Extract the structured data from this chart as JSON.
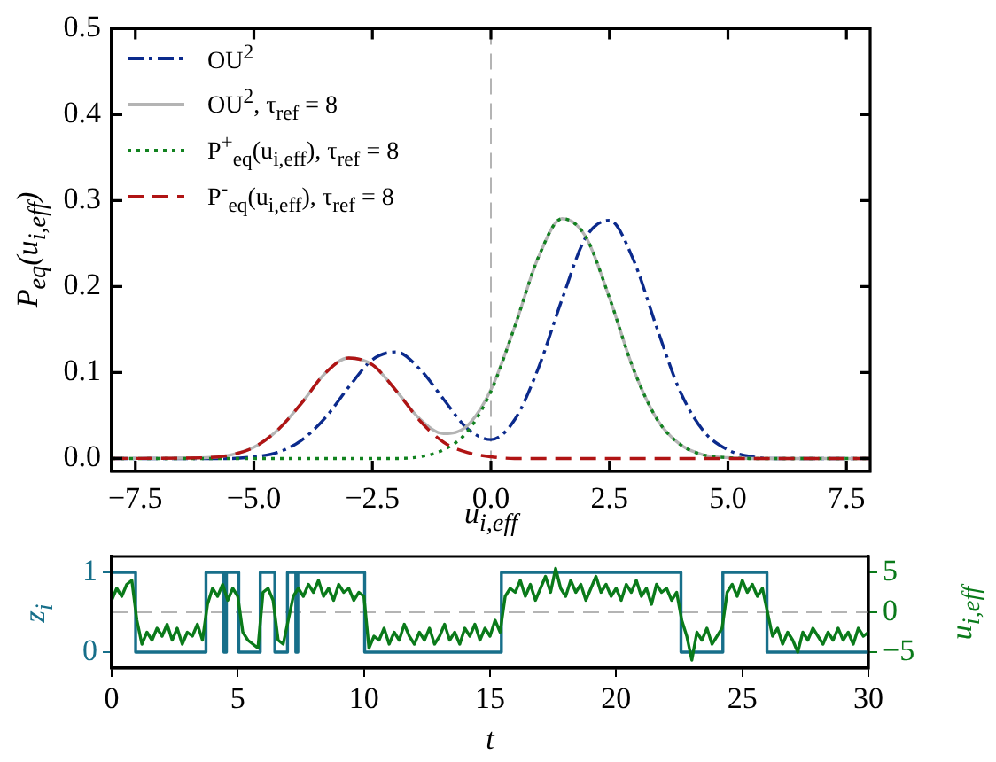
{
  "chart_data": [
    {
      "type": "line",
      "xlabel": "u$_{i,eff}$",
      "ylabel": "P$_{eq}$(u$_{i,eff}$)",
      "x": [
        -8,
        -6,
        -5.5,
        -5,
        -4.5,
        -4,
        -3.5,
        -3,
        -2.5,
        -2,
        -1.5,
        -1,
        -0.5,
        0,
        0.5,
        1,
        1.5,
        2,
        2.5,
        3,
        3.5,
        4,
        4.5,
        5,
        5.5,
        6,
        8
      ],
      "series": [
        {
          "name": "OU$^{2}$",
          "color": "#0b2a8c",
          "line_style": "dashdot",
          "values": [
            0,
            0,
            0,
            0.002,
            0.007,
            0.021,
            0.047,
            0.083,
            0.115,
            0.124,
            0.104,
            0.069,
            0.035,
            0.022,
            0.045,
            0.105,
            0.185,
            0.257,
            0.277,
            0.232,
            0.152,
            0.077,
            0.031,
            0.01,
            0.002,
            0,
            0
          ]
        },
        {
          "name": "OU$^{2}$, τ$_{ref}$ = 8",
          "color": "#b4b4b4",
          "line_style": "solid",
          "values": [
            0,
            0.001,
            0.004,
            0.013,
            0.033,
            0.064,
            0.099,
            0.117,
            0.109,
            0.079,
            0.046,
            0.029,
            0.038,
            0.08,
            0.153,
            0.234,
            0.279,
            0.258,
            0.187,
            0.105,
            0.046,
            0.016,
            0.004,
            0.001,
            0,
            0,
            0
          ]
        },
        {
          "name": "P$^{+}$$_{eq}$(u$_{i,eff}$), τ$_{ref}$ = 8",
          "color": "#11821f",
          "line_style": "dotted",
          "values": [
            0,
            0,
            0,
            0,
            0,
            0,
            0,
            0,
            0,
            0,
            0.002,
            0.01,
            0.031,
            0.078,
            0.153,
            0.234,
            0.279,
            0.258,
            0.187,
            0.105,
            0.046,
            0.016,
            0.004,
            0.001,
            0,
            0,
            0
          ]
        },
        {
          "name": "P$^{-}$$_{eq}$(u$_{i,eff}$), τ$_{ref}$ = 8",
          "color": "#b01414",
          "line_style": "dashed",
          "values": [
            0,
            0.001,
            0.004,
            0.013,
            0.033,
            0.064,
            0.099,
            0.117,
            0.109,
            0.079,
            0.044,
            0.019,
            0.007,
            0.002,
            0,
            0,
            0,
            0,
            0,
            0,
            0,
            0,
            0,
            0,
            0,
            0,
            0
          ]
        }
      ],
      "xlim": [
        -8,
        8
      ],
      "xticks": [
        {
          "value": -7.5,
          "label": "−7.5"
        },
        {
          "value": -5,
          "label": "−5.0"
        },
        {
          "value": -2.5,
          "label": "−2.5"
        },
        {
          "value": 0,
          "label": "0.0"
        },
        {
          "value": 2.5,
          "label": "2.5"
        },
        {
          "value": 5,
          "label": "5.0"
        },
        {
          "value": 7.5,
          "label": "7.5"
        }
      ],
      "ylim": [
        -0.015,
        0.5
      ],
      "yticks": [
        {
          "value": 0,
          "label": "0.0"
        },
        {
          "value": 0.1,
          "label": "0.1"
        },
        {
          "value": 0.2,
          "label": "0.2"
        },
        {
          "value": 0.3,
          "label": "0.3"
        },
        {
          "value": 0.4,
          "label": "0.4"
        },
        {
          "value": 0.5,
          "label": "0.5"
        }
      ],
      "ref_lines": [
        {
          "axis": "x",
          "value": 0,
          "color": "#b4b4b4",
          "line_style": "dashed"
        }
      ],
      "legend": "top left",
      "grid": false
    },
    {
      "type": "line",
      "xlabel": "t",
      "ylabel": "z$_{i}$",
      "y2label": "u$_{i,eff}$",
      "series": [
        {
          "type": "step",
          "color": "#176f8a",
          "x": [
            0,
            0.95,
            3.74,
            4.45,
            4.55,
            5.04,
            5.89,
            6.47,
            6.97,
            7.3,
            7.38,
            10.03,
            15.45,
            22.57,
            24.23,
            25.98,
            30
          ],
          "values": [
            1,
            0,
            1,
            0,
            1,
            0,
            1,
            0,
            1,
            0,
            1,
            0,
            1,
            0,
            1,
            0,
            0
          ]
        },
        {
          "axis": "y2",
          "color": "#0a7a1a",
          "x": [
            0,
            0.2,
            0.4,
            0.6,
            0.8,
            1,
            1.2,
            1.4,
            1.6,
            1.8,
            2,
            2.2,
            2.4,
            2.6,
            2.8,
            3,
            3.2,
            3.4,
            3.6,
            3.8,
            4,
            4.2,
            4.4,
            4.6,
            4.8,
            5,
            5.2,
            5.4,
            5.6,
            5.8,
            6,
            6.2,
            6.4,
            6.6,
            6.8,
            7,
            7.2,
            7.4,
            7.6,
            7.8,
            8,
            8.2,
            8.4,
            8.6,
            8.8,
            9,
            9.2,
            9.4,
            9.6,
            9.8,
            10,
            10.2,
            10.4,
            10.6,
            10.8,
            11,
            11.2,
            11.4,
            11.6,
            11.8,
            12,
            12.2,
            12.4,
            12.6,
            12.8,
            13,
            13.2,
            13.4,
            13.6,
            13.8,
            14,
            14.2,
            14.4,
            14.6,
            14.8,
            15,
            15.2,
            15.4,
            15.6,
            15.8,
            16,
            16.2,
            16.4,
            16.6,
            16.8,
            17,
            17.2,
            17.4,
            17.6,
            17.8,
            18,
            18.2,
            18.4,
            18.6,
            18.8,
            19,
            19.2,
            19.4,
            19.6,
            19.8,
            20,
            20.2,
            20.4,
            20.6,
            20.8,
            21,
            21.2,
            21.4,
            21.6,
            21.8,
            22,
            22.2,
            22.4,
            22.6,
            22.8,
            23,
            23.2,
            23.4,
            23.6,
            23.8,
            24,
            24.2,
            24.4,
            24.6,
            24.8,
            25,
            25.2,
            25.4,
            25.6,
            25.8,
            26,
            26.2,
            26.4,
            26.6,
            26.8,
            27,
            27.2,
            27.4,
            27.6,
            27.8,
            28,
            28.2,
            28.4,
            28.6,
            28.8,
            29,
            29.2,
            29.4,
            29.6,
            29.8,
            30
          ],
          "values": [
            1.5,
            3,
            2,
            3.5,
            4,
            -1,
            -4,
            -2.5,
            -3.5,
            -2,
            -3,
            -1.5,
            -3.5,
            -2,
            -4,
            -2.5,
            -3,
            -1.5,
            -3.5,
            1,
            3,
            2,
            3.5,
            1.5,
            3,
            2,
            -2.5,
            -3.5,
            -4,
            -4.5,
            2.5,
            3,
            1.5,
            -3.5,
            -4,
            -1,
            2,
            3,
            2,
            3.5,
            2.5,
            4,
            2,
            3,
            1.5,
            3.5,
            2.5,
            3,
            1.5,
            2.5,
            2,
            -4.5,
            -3,
            -3.5,
            -2,
            -4,
            -2.5,
            -3.5,
            -1.5,
            -3,
            -4,
            -2.5,
            -3.5,
            -2,
            -4,
            -3,
            -1.5,
            -3.5,
            -2.5,
            -4,
            -2,
            -3,
            -1.5,
            -3.5,
            -2,
            -3,
            -1,
            -2.5,
            2,
            3,
            2.5,
            4,
            2,
            3.5,
            1.5,
            3,
            4.5,
            2.5,
            5.5,
            3,
            2,
            4,
            2.5,
            3.5,
            1.5,
            3,
            4.5,
            2.5,
            3.5,
            2,
            3,
            1.5,
            3.5,
            2.5,
            4,
            2,
            3,
            1,
            3.5,
            2.5,
            3,
            1.5,
            2.5,
            -1,
            -3,
            -6,
            -2.5,
            -3.5,
            -2,
            -4,
            -3,
            -2,
            2.5,
            3.5,
            2,
            4,
            2.5,
            3.5,
            2,
            3,
            0,
            -3,
            -2,
            -4,
            -2.5,
            -3.5,
            -5,
            -2.5,
            -3.5,
            -2,
            -3,
            -4,
            -2.5,
            -3.5,
            -2,
            -3.5,
            -2.5,
            -4,
            -2,
            -3,
            -2.5
          ]
        }
      ],
      "xlim": [
        0,
        30
      ],
      "xticks": [
        0,
        5,
        10,
        15,
        20,
        25,
        30
      ],
      "ylim": [
        -0.2,
        1.2
      ],
      "yticks": [
        0,
        1
      ],
      "y2lim": [
        -7,
        7
      ],
      "y2ticks": [
        {
          "value": -5,
          "label": "−5"
        },
        0,
        5
      ],
      "ref_lines": [
        {
          "axis": "y2",
          "value": 0,
          "color": "#b4b4b4",
          "line_style": "dashed"
        }
      ],
      "grid": false
    }
  ]
}
